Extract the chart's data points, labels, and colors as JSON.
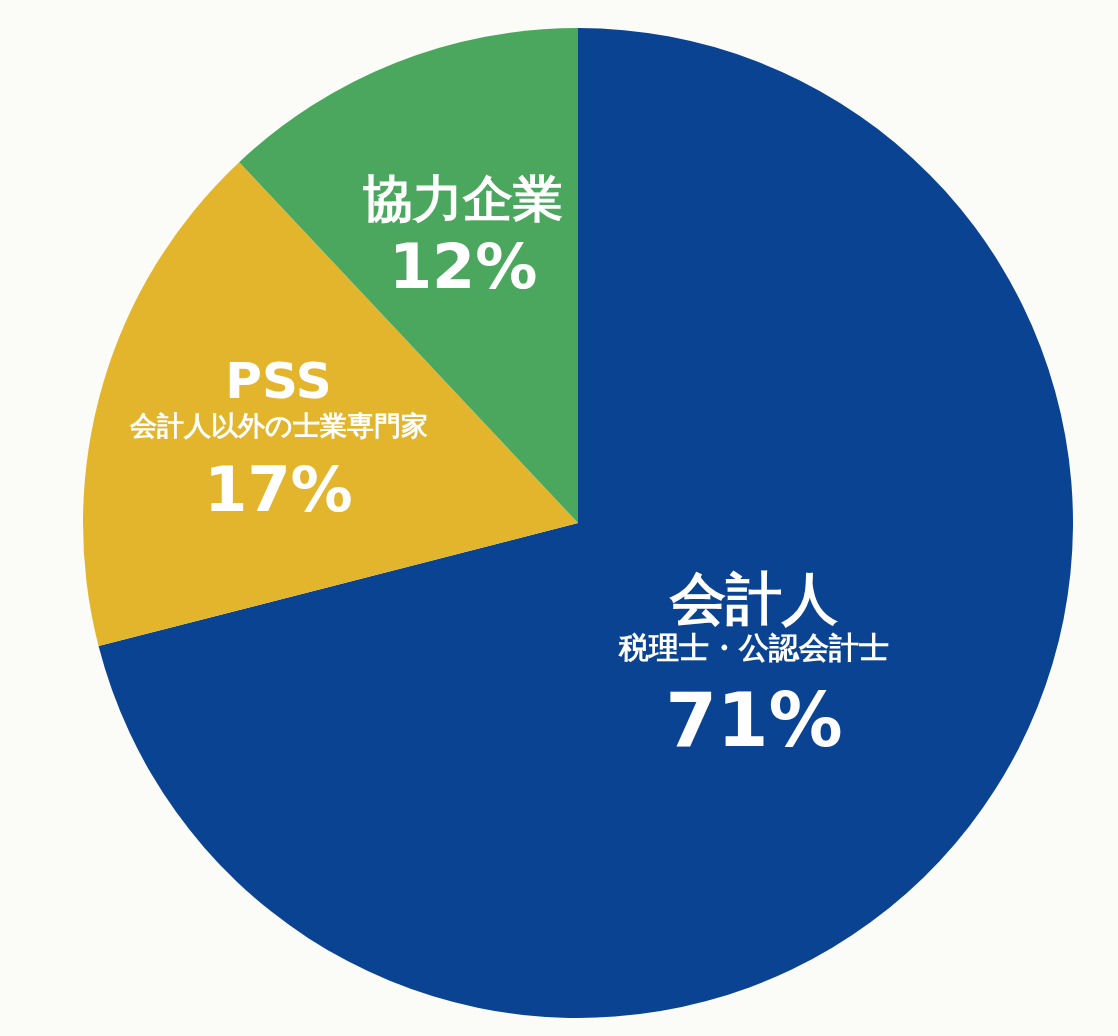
{
  "chart_data": {
    "type": "pie",
    "categories": [
      "会計人",
      "PSS",
      "協力企業"
    ],
    "annotations": [
      {
        "text": "税理士・公認会計士",
        "x": "会計人"
      },
      {
        "text": "会計人以外の士業専門家",
        "x": "PSS"
      }
    ],
    "values": [
      71,
      17,
      12
    ],
    "colors": [
      "#0a4391",
      "#e3b52c",
      "#4ba75d"
    ],
    "value_labels": [
      "71%",
      "17%",
      "12%"
    ],
    "legend": false
  }
}
